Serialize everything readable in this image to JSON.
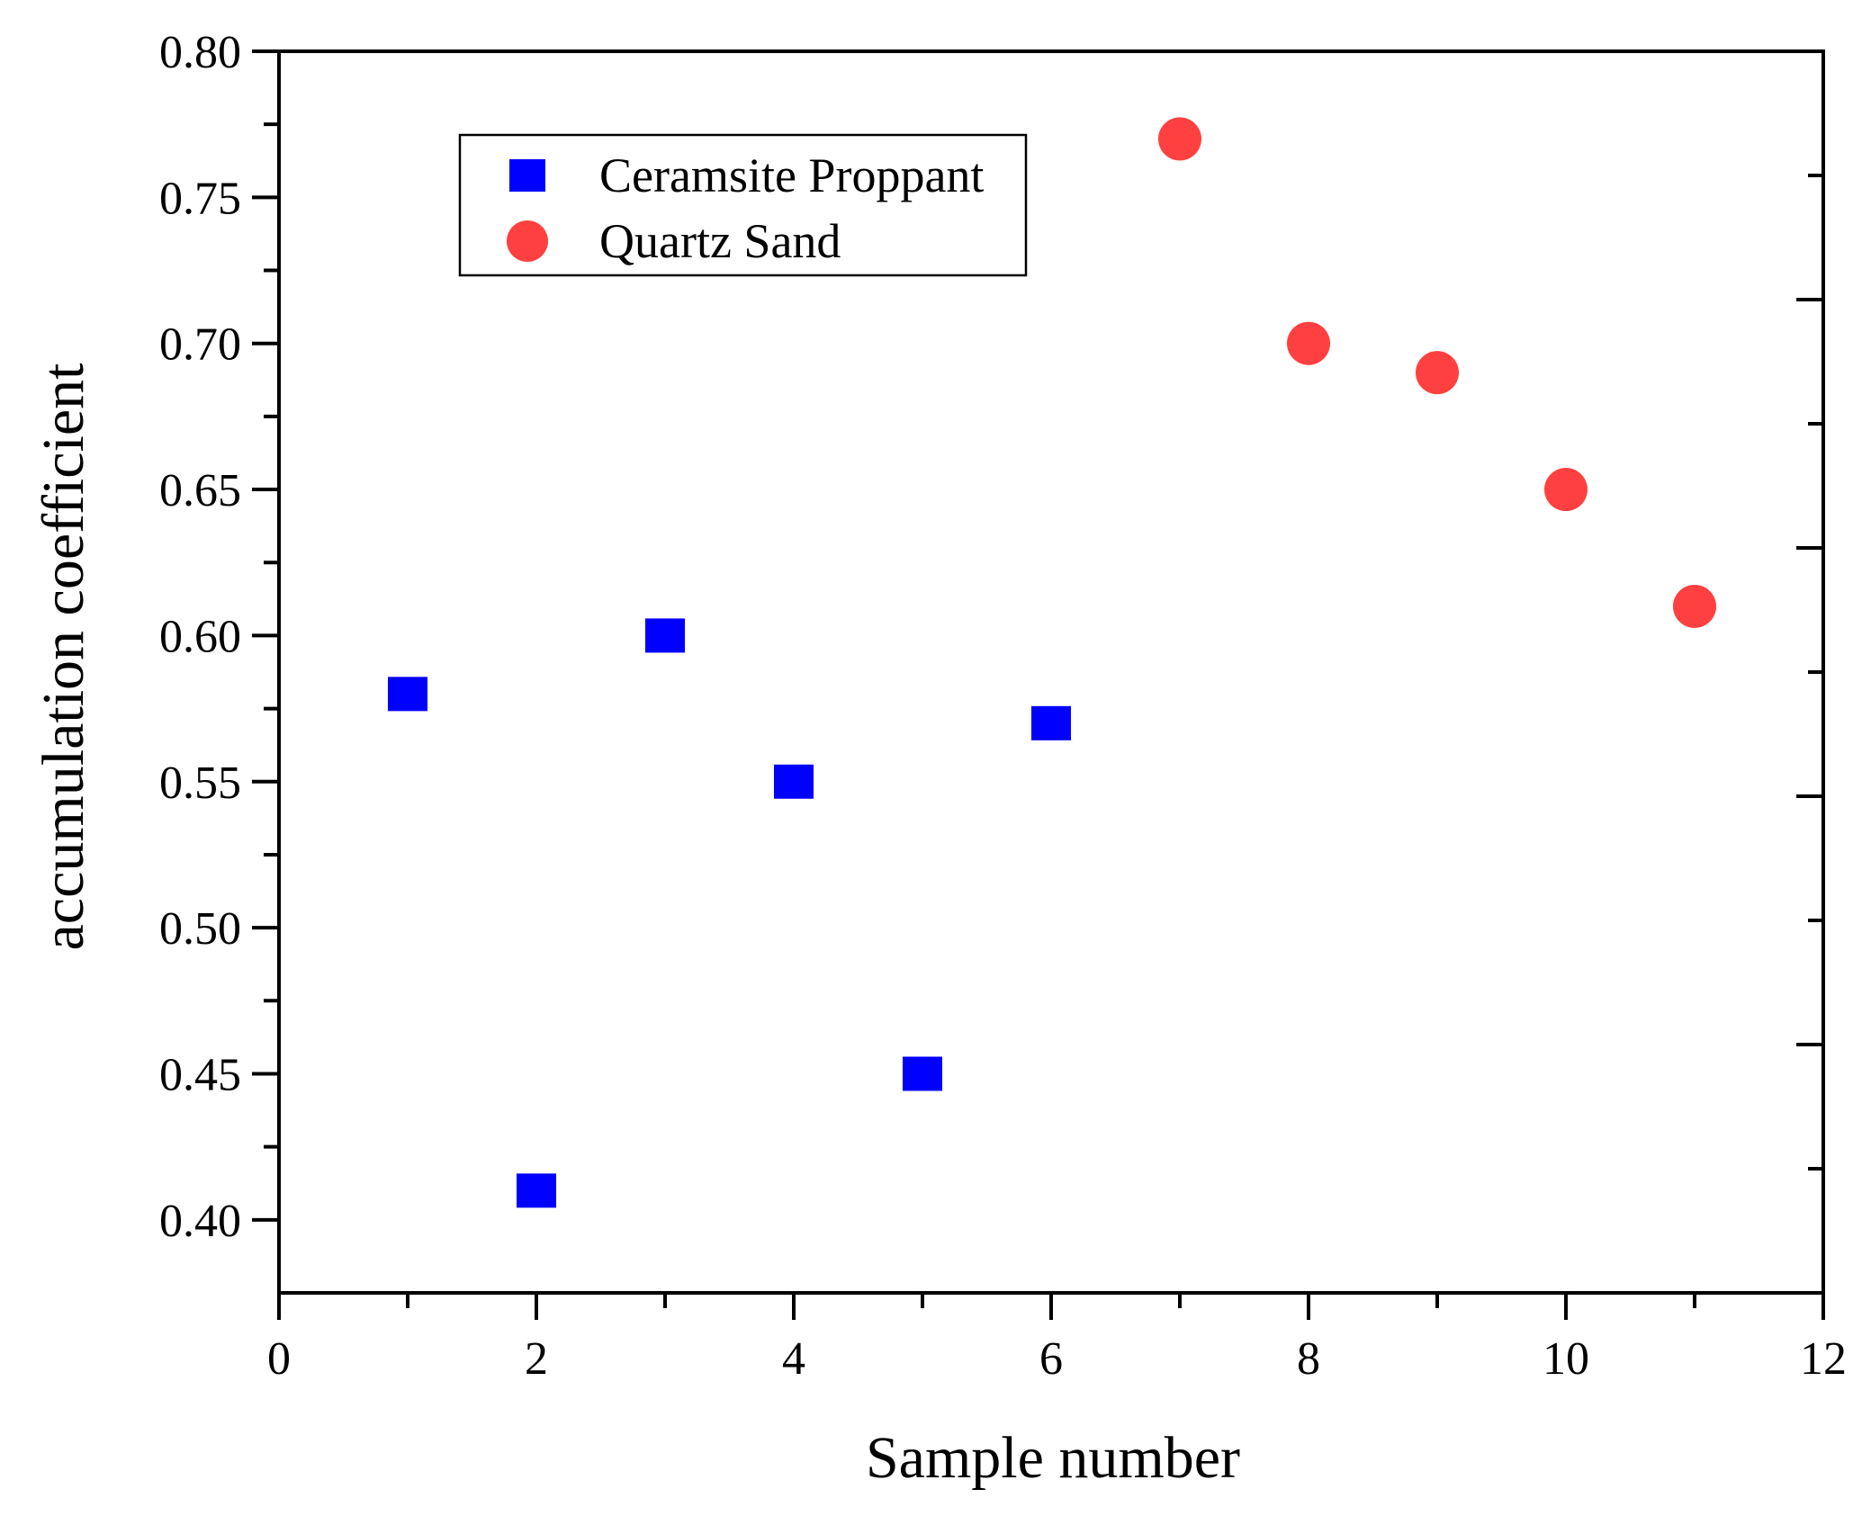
{
  "chart_data": {
    "type": "scatter",
    "title": "",
    "xlabel": "Sample number",
    "ylabel": "accumulation coefficient",
    "xlim": [
      0,
      12
    ],
    "ylim": [
      0.375,
      0.8
    ],
    "x_ticks": [
      0,
      2,
      4,
      6,
      8,
      10,
      12
    ],
    "x_tick_labels": [
      "0",
      "2",
      "4",
      "6",
      "8",
      "10",
      "12"
    ],
    "y_ticks": [
      0.4,
      0.45,
      0.5,
      0.55,
      0.6,
      0.65,
      0.7,
      0.75,
      0.8
    ],
    "y_tick_labels": [
      "0.40",
      "0.45",
      "0.50",
      "0.55",
      "0.60",
      "0.65",
      "0.70",
      "0.75",
      "0.80"
    ],
    "grid": false,
    "legend_position": "top-left",
    "series": [
      {
        "name": "Ceramsite Proppant",
        "marker": "square",
        "color": "#0000ff",
        "x": [
          1,
          2,
          3,
          4,
          5,
          6
        ],
        "y": [
          0.58,
          0.41,
          0.6,
          0.55,
          0.45,
          0.57
        ]
      },
      {
        "name": "Quartz Sand",
        "marker": "circle",
        "color": "#ff4040",
        "x": [
          7,
          8,
          9,
          10,
          11
        ],
        "y": [
          0.77,
          0.7,
          0.69,
          0.65,
          0.61
        ]
      }
    ]
  }
}
